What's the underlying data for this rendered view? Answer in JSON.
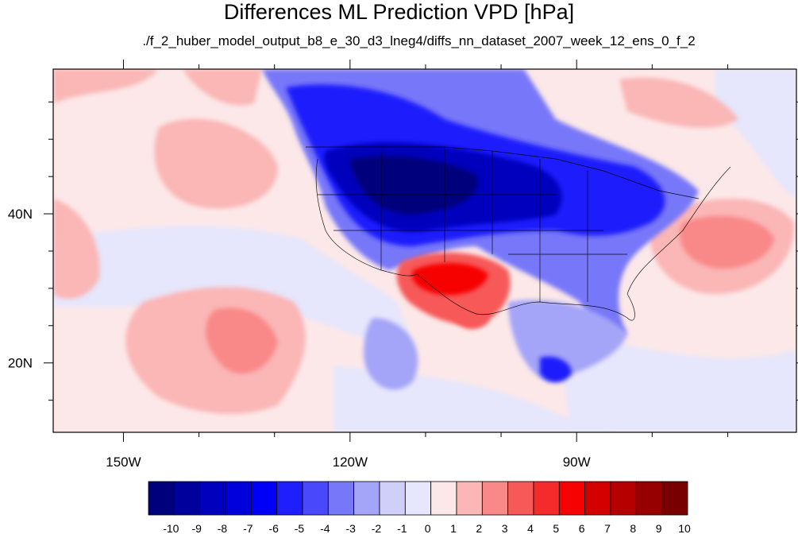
{
  "header": {
    "title": "Differences ML Prediction VPD [hPa]",
    "subtitle": "./f_2_huber_model_output_b8_e_30_d3_lneg4/diffs_nn_dataset_2007_week_12_ens_0_f_2"
  },
  "chart_data": {
    "type": "heatmap",
    "title": "Differences ML Prediction VPD [hPa]",
    "subtitle": "./f_2_huber_model_output_b8_e_30_d3_lneg4/diffs_nn_dataset_2007_week_12_ens_0_f_2",
    "x_ticks": [
      "150W",
      "120W",
      "90W"
    ],
    "x_tick_values": [
      -150,
      -120,
      -90
    ],
    "y_ticks": [
      "40N",
      "20N"
    ],
    "y_tick_values": [
      40,
      20
    ],
    "xlim": [
      -159.3,
      -60.9
    ],
    "ylim": [
      10.7,
      59.4
    ],
    "colorbar_levels": [
      "-10",
      "-9",
      "-8",
      "-7",
      "-6",
      "-5",
      "-4",
      "-3",
      "-2",
      "-1",
      "0",
      "1",
      "2",
      "3",
      "4",
      "5",
      "6",
      "7",
      "8",
      "9",
      "10"
    ],
    "colorbar_colors": [
      "#00007c",
      "#00009c",
      "#0000bd",
      "#0000dc",
      "#0000f7",
      "#1f1ffd",
      "#4949fb",
      "#7777f9",
      "#a4a4f8",
      "#cfcff9",
      "#e6e6fc",
      "#fce8e8",
      "#fbb6b6",
      "#f98888",
      "#f75959",
      "#f52a2a",
      "#f70202",
      "#d40000",
      "#b60000",
      "#960000",
      "#780000"
    ],
    "colorbar_label": ""
  }
}
